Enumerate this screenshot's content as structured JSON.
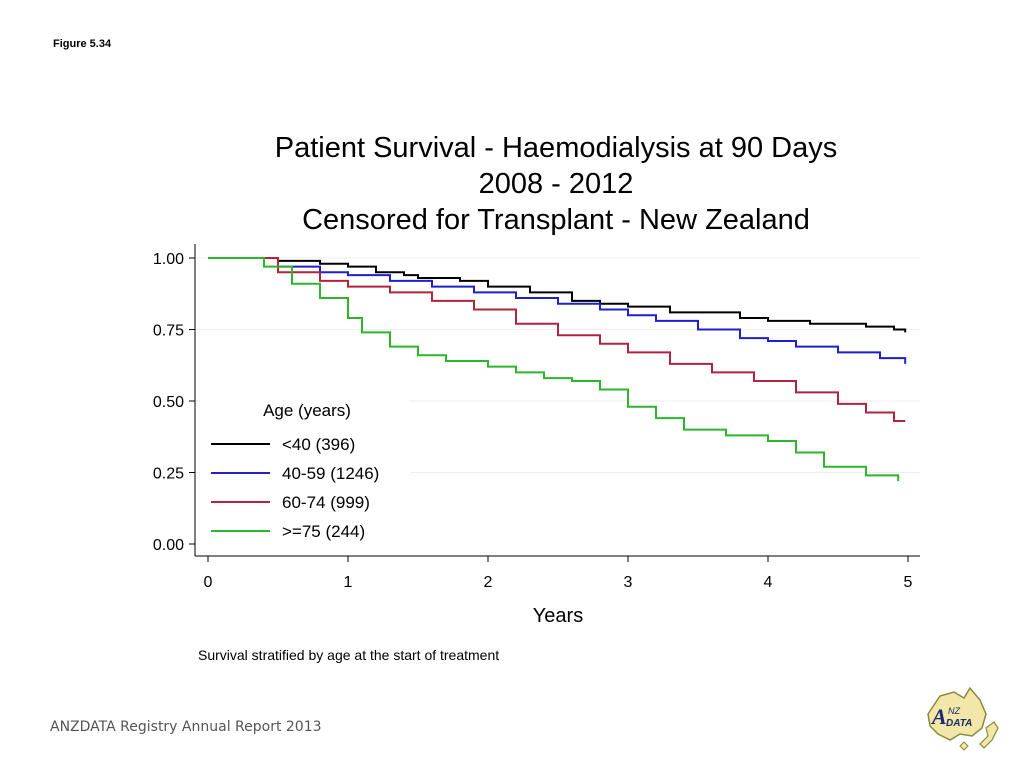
{
  "figure_label": "Figure 5.34",
  "caption": "Survival stratified by age at the start of treatment",
  "footer": "ANZDATA Registry Annual Report 2013",
  "logo": {
    "icon": "anzdata-logo-icon",
    "text": "ANZDATA"
  },
  "chart_data": {
    "type": "line",
    "title": [
      "Patient Survival - Haemodialysis at 90 Days",
      "2008 - 2012",
      "Censored for Transplant - New Zealand"
    ],
    "xlabel": "Years",
    "ylabel": "",
    "xlim": [
      0,
      5
    ],
    "ylim": [
      0,
      1
    ],
    "x_ticks": [
      0,
      1,
      2,
      3,
      4,
      5
    ],
    "y_ticks": [
      0,
      0.25,
      0.5,
      0.75,
      1
    ],
    "y_tick_labels": [
      "0.00",
      "0.25",
      "0.50",
      "0.75",
      "1.00"
    ],
    "grid": true,
    "legend": {
      "title": "Age (years)",
      "placement": "bottom-left"
    },
    "series": [
      {
        "name": "<40 (396)",
        "color": "#000000",
        "points": [
          [
            0,
            1.0
          ],
          [
            0.3,
            1.0
          ],
          [
            0.5,
            0.99
          ],
          [
            0.8,
            0.98
          ],
          [
            1.0,
            0.97
          ],
          [
            1.2,
            0.95
          ],
          [
            1.4,
            0.94
          ],
          [
            1.5,
            0.93
          ],
          [
            1.8,
            0.92
          ],
          [
            2.0,
            0.9
          ],
          [
            2.3,
            0.88
          ],
          [
            2.6,
            0.85
          ],
          [
            2.8,
            0.84
          ],
          [
            3.0,
            0.83
          ],
          [
            3.3,
            0.81
          ],
          [
            3.7,
            0.81
          ],
          [
            3.8,
            0.79
          ],
          [
            4.0,
            0.78
          ],
          [
            4.3,
            0.77
          ],
          [
            4.7,
            0.76
          ],
          [
            4.9,
            0.75
          ],
          [
            4.98,
            0.74
          ]
        ]
      },
      {
        "name": "40-59 (1246)",
        "color": "#1f1fcc",
        "points": [
          [
            0,
            1.0
          ],
          [
            0.25,
            1.0
          ],
          [
            0.5,
            0.97
          ],
          [
            0.8,
            0.95
          ],
          [
            1.0,
            0.94
          ],
          [
            1.3,
            0.92
          ],
          [
            1.6,
            0.9
          ],
          [
            1.9,
            0.88
          ],
          [
            2.2,
            0.86
          ],
          [
            2.5,
            0.84
          ],
          [
            2.8,
            0.82
          ],
          [
            3.0,
            0.8
          ],
          [
            3.2,
            0.78
          ],
          [
            3.5,
            0.75
          ],
          [
            3.8,
            0.72
          ],
          [
            4.0,
            0.71
          ],
          [
            4.2,
            0.69
          ],
          [
            4.5,
            0.67
          ],
          [
            4.8,
            0.65
          ],
          [
            4.98,
            0.63
          ]
        ]
      },
      {
        "name": "60-74 (999)",
        "color": "#b0243e",
        "points": [
          [
            0,
            1.0
          ],
          [
            0.25,
            1.0
          ],
          [
            0.5,
            0.95
          ],
          [
            0.8,
            0.92
          ],
          [
            1.0,
            0.9
          ],
          [
            1.3,
            0.88
          ],
          [
            1.6,
            0.85
          ],
          [
            1.9,
            0.82
          ],
          [
            2.2,
            0.77
          ],
          [
            2.5,
            0.73
          ],
          [
            2.8,
            0.7
          ],
          [
            3.0,
            0.67
          ],
          [
            3.3,
            0.63
          ],
          [
            3.6,
            0.6
          ],
          [
            3.9,
            0.57
          ],
          [
            4.2,
            0.53
          ],
          [
            4.5,
            0.49
          ],
          [
            4.7,
            0.46
          ],
          [
            4.9,
            0.43
          ],
          [
            4.98,
            0.43
          ]
        ]
      },
      {
        "name": ">=75 (244)",
        "color": "#2db52d",
        "points": [
          [
            0,
            1.0
          ],
          [
            0.25,
            1.0
          ],
          [
            0.4,
            0.97
          ],
          [
            0.6,
            0.91
          ],
          [
            0.8,
            0.86
          ],
          [
            1.0,
            0.79
          ],
          [
            1.1,
            0.74
          ],
          [
            1.3,
            0.69
          ],
          [
            1.5,
            0.66
          ],
          [
            1.7,
            0.64
          ],
          [
            2.0,
            0.62
          ],
          [
            2.2,
            0.6
          ],
          [
            2.4,
            0.58
          ],
          [
            2.6,
            0.57
          ],
          [
            2.8,
            0.54
          ],
          [
            3.0,
            0.48
          ],
          [
            3.2,
            0.44
          ],
          [
            3.4,
            0.4
          ],
          [
            3.7,
            0.38
          ],
          [
            4.0,
            0.36
          ],
          [
            4.2,
            0.32
          ],
          [
            4.4,
            0.27
          ],
          [
            4.7,
            0.24
          ],
          [
            4.93,
            0.22
          ]
        ]
      }
    ]
  }
}
